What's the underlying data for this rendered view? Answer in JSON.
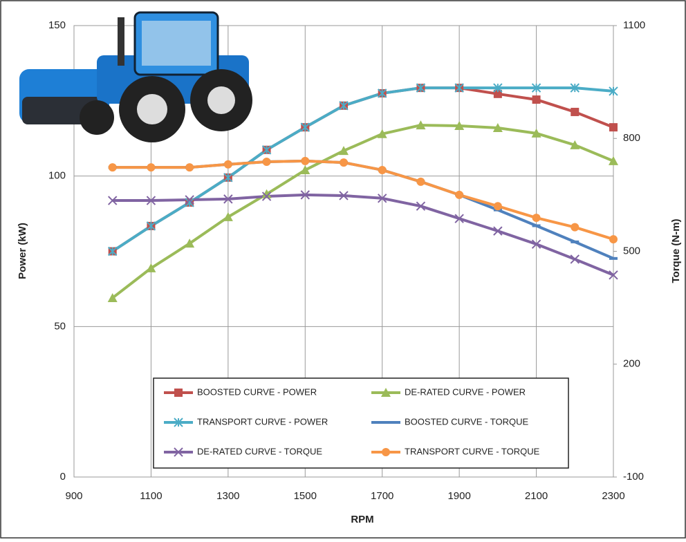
{
  "chart_data": {
    "type": "line",
    "x_label": "RPM",
    "y_label": "Power (kW)",
    "y2_label": "Torque (N-m)",
    "x": [
      1000,
      1100,
      1200,
      1300,
      1400,
      1500,
      1600,
      1700,
      1800,
      1900,
      2000,
      2100,
      2200,
      2300
    ],
    "xlim": [
      900,
      2300
    ],
    "xticks": [
      900,
      1100,
      1300,
      1500,
      1700,
      1900,
      2100,
      2300
    ],
    "ylim": [
      0,
      150
    ],
    "yticks": [
      0,
      50,
      100,
      150
    ],
    "y2lim": [
      -100,
      1100
    ],
    "y2ticks": [
      -100,
      200,
      500,
      800,
      1100
    ],
    "grid": true,
    "series": [
      {
        "name": "BOOSTED CURVE - POWER",
        "color": "#c0504d",
        "marker": "square",
        "values": [
          75,
          83.4,
          91.2,
          99.5,
          108.7,
          116.2,
          123.4,
          127.5,
          129.3,
          129.3,
          127.3,
          125.4,
          121.3,
          116.2
        ]
      },
      {
        "name": "DE-RATED CURVE - POWER",
        "color": "#9bbb59",
        "marker": "triangle",
        "values": [
          59.5,
          69.4,
          77.6,
          86.4,
          94,
          102,
          108.4,
          114,
          116.9,
          116.7,
          116,
          114.2,
          110.3,
          105
        ]
      },
      {
        "name": "TRANSPORT CURVE - POWER",
        "color": "#4bacc6",
        "marker": "star",
        "values": [
          75,
          83.4,
          91.2,
          99.5,
          108.7,
          116.2,
          123.4,
          127.5,
          129.3,
          129.3,
          129.3,
          129.3,
          129.3,
          128.2
        ]
      },
      {
        "name": "BOOSTED CURVE - TORQUE",
        "color": "#4f81bd",
        "marker": "dash",
        "axis": "y2",
        "values": [
          723,
          723,
          723,
          731,
          738,
          740,
          736,
          716,
          685,
          650,
          610,
          568,
          525,
          481
        ]
      },
      {
        "name": "DE-RATED CURVE - TORQUE",
        "color": "#8064a2",
        "marker": "x",
        "axis": "y2",
        "values": [
          635,
          635,
          637,
          639,
          646,
          650,
          648,
          641,
          620,
          587,
          554,
          519,
          479,
          437
        ]
      },
      {
        "name": "TRANSPORT CURVE - TORQUE",
        "color": "#f79646",
        "marker": "circle",
        "axis": "y2",
        "values": [
          723,
          723,
          723,
          731,
          738,
          740,
          736,
          716,
          685,
          650,
          620,
          589,
          564,
          532
        ]
      }
    ]
  }
}
